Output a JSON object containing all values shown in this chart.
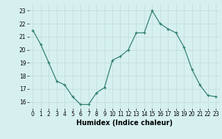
{
  "x": [
    0,
    1,
    2,
    3,
    4,
    5,
    6,
    7,
    8,
    9,
    10,
    11,
    12,
    13,
    14,
    15,
    16,
    17,
    18,
    19,
    20,
    21,
    22,
    23
  ],
  "y": [
    21.5,
    20.4,
    19.0,
    17.6,
    17.3,
    16.4,
    15.8,
    15.8,
    16.7,
    17.1,
    19.2,
    19.5,
    20.0,
    21.3,
    21.3,
    23.0,
    22.0,
    21.6,
    21.3,
    20.2,
    18.5,
    17.3,
    16.5,
    16.4
  ],
  "line_color": "#2e7d6e",
  "marker": "+",
  "bg_color": "#d6f0f0",
  "grid_color": "#c0d8d8",
  "xlabel": "Humidex (Indice chaleur)",
  "ylim": [
    15.5,
    23.5
  ],
  "xlim": [
    -0.5,
    23.5
  ],
  "yticks": [
    16,
    17,
    18,
    19,
    20,
    21,
    22,
    23
  ],
  "xticks": [
    0,
    1,
    2,
    3,
    4,
    5,
    6,
    7,
    8,
    9,
    10,
    11,
    12,
    13,
    14,
    15,
    16,
    17,
    18,
    19,
    20,
    21,
    22,
    23
  ],
  "tick_fontsize": 5.5,
  "xlabel_fontsize": 7.0
}
